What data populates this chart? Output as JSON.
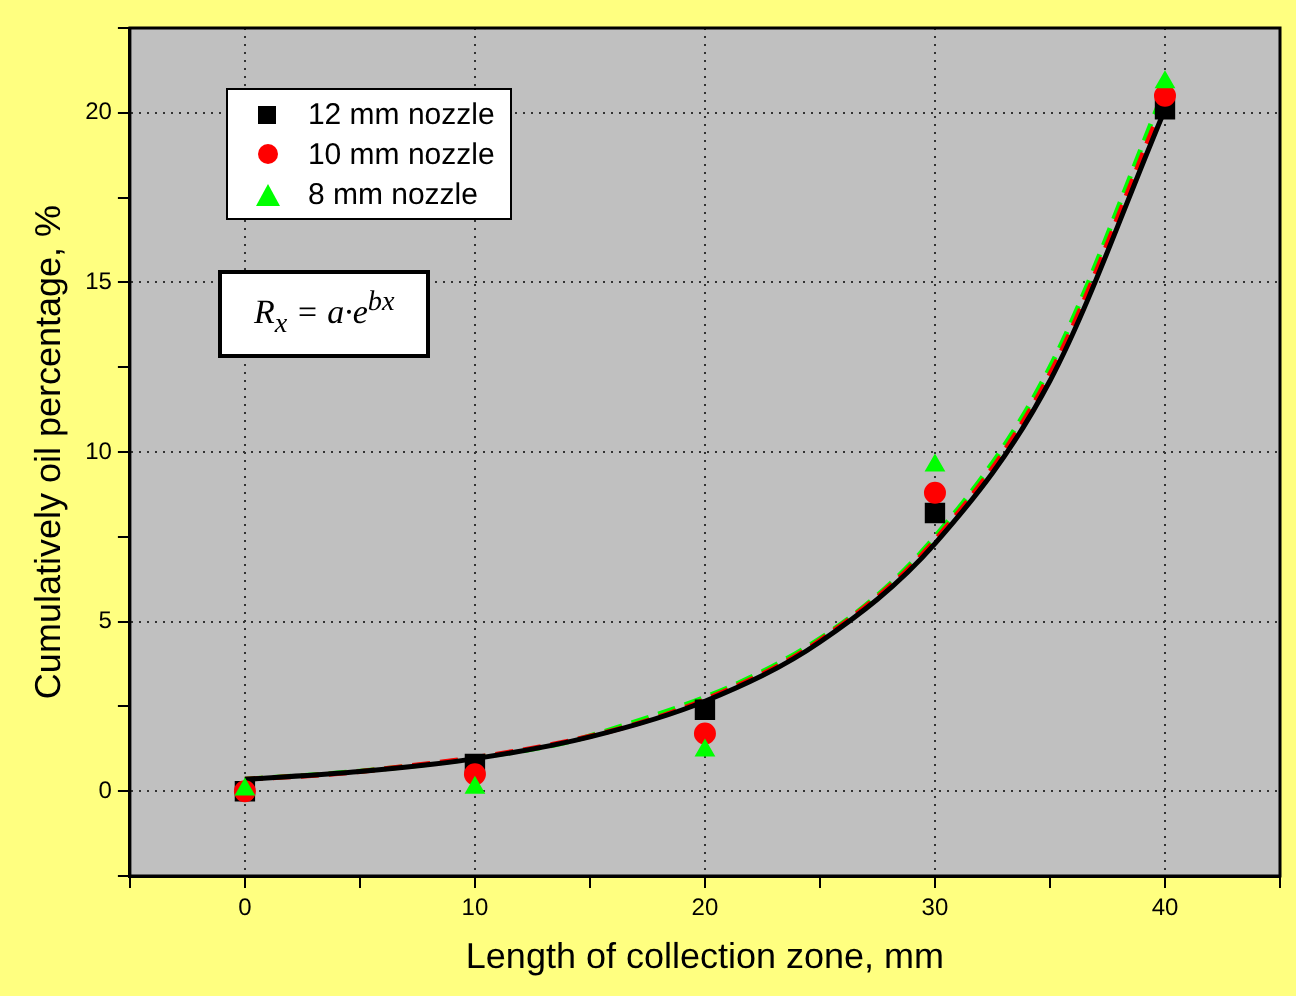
{
  "chart_data": {
    "type": "scatter",
    "xlabel": "Length of collection zone, mm",
    "ylabel": "Cumulatively oil percentage, %",
    "x": [
      0,
      10,
      20,
      30,
      40
    ],
    "series": [
      {
        "name": "12 mm nozzle",
        "color": "#000000",
        "marker": "square",
        "values": [
          0.0,
          0.8,
          2.4,
          8.2,
          20.1
        ]
      },
      {
        "name": "10 mm nozzle",
        "color": "#ff0000",
        "marker": "circle",
        "values": [
          0.0,
          0.5,
          1.7,
          8.8,
          20.5
        ]
      },
      {
        "name": "8 mm nozzle",
        "color": "#00ff00",
        "marker": "triangle",
        "values": [
          0.05,
          0.1,
          1.2,
          9.6,
          20.9
        ]
      },
      {
        "type": "line",
        "color": "#000000",
        "line_style": "solid",
        "marker": "none",
        "x": [
          0,
          5,
          10,
          15,
          20,
          25,
          30,
          35,
          40
        ],
        "values": [
          0.35,
          0.58,
          0.96,
          1.6,
          2.65,
          4.4,
          7.3,
          12.1,
          20.1
        ]
      },
      {
        "type": "line",
        "color": "#ff0000",
        "line_style": "dashed",
        "marker": "none",
        "x": [
          0,
          5,
          10,
          15,
          20,
          25,
          30,
          35,
          40
        ],
        "values": [
          0.35,
          0.58,
          null,
          1.62,
          2.7,
          4.45,
          7.4,
          12.3,
          20.4
        ]
      },
      {
        "type": "line",
        "color": "#00ff00",
        "line_style": "dashed",
        "marker": "none",
        "x": [
          0,
          5,
          10,
          15,
          20,
          25,
          30,
          35,
          40
        ],
        "values": [
          0.35,
          0.59,
          0.98,
          1.63,
          null,
          4.5,
          7.5,
          12.5,
          20.7
        ]
      }
    ],
    "xlim": [
      -5,
      45
    ],
    "xticks": [
      {
        "value": -5,
        "label": null
      },
      0,
      {
        "value": 5,
        "label": null
      },
      10,
      {
        "value": 15,
        "label": null
      },
      20,
      {
        "value": 25,
        "label": null
      },
      30,
      {
        "value": 35,
        "label": null
      },
      40,
      {
        "value": 45,
        "label": null
      }
    ],
    "ylim": [
      -2.5,
      22.5
    ],
    "yticks": [
      {
        "value": -2.5,
        "label": null
      },
      0,
      {
        "value": 2.5,
        "label": null
      },
      5,
      {
        "value": 7.5,
        "label": null
      },
      10,
      {
        "value": 12.5,
        "label": null
      },
      15,
      {
        "value": 17.5,
        "label": null
      },
      20,
      {
        "value": 22.5,
        "label": null
      }
    ],
    "grid": true,
    "legend": "top left",
    "annotations": [
      "R$_{x}$ = a·e$^{bx}$"
    ]
  }
}
